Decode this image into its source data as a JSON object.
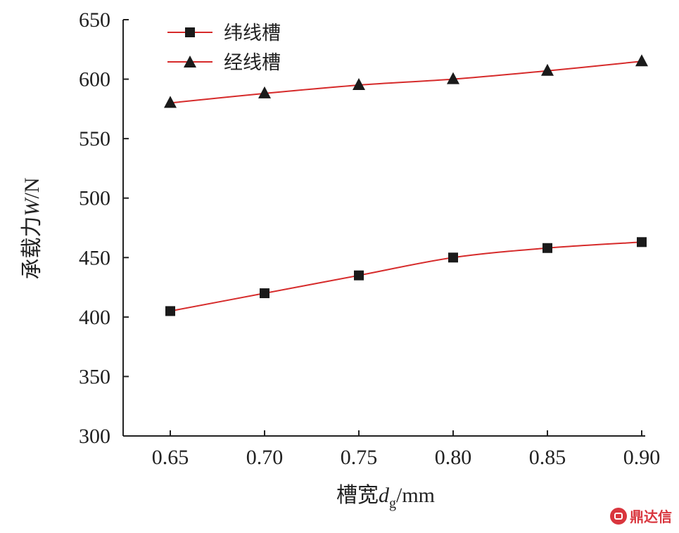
{
  "chart_data": {
    "type": "line",
    "x": [
      0.65,
      0.7,
      0.75,
      0.8,
      0.85,
      0.9
    ],
    "x_tick_labels": [
      "0.65",
      "0.70",
      "0.75",
      "0.80",
      "0.85",
      "0.90"
    ],
    "y_ticks": [
      300,
      350,
      400,
      450,
      500,
      550,
      600,
      650
    ],
    "xlim": [
      0.625,
      0.9
    ],
    "ylim": [
      300,
      650
    ],
    "xlabel": {
      "main": "槽宽",
      "var": "d",
      "sub": "g",
      "unit": "/mm"
    },
    "ylabel": {
      "main": "承载力",
      "var": "W",
      "unit": "/N"
    },
    "grid": false,
    "legend_position": "top-left",
    "series": [
      {
        "name": "纬线槽",
        "marker": "square",
        "color": "#d62b2b",
        "values": [
          405,
          420,
          435,
          450,
          458,
          463
        ]
      },
      {
        "name": "经线槽",
        "marker": "triangle",
        "color": "#d62b2b",
        "values": [
          580,
          588,
          595,
          600,
          607,
          615
        ]
      }
    ]
  },
  "watermark": {
    "text": "鼎达信"
  }
}
